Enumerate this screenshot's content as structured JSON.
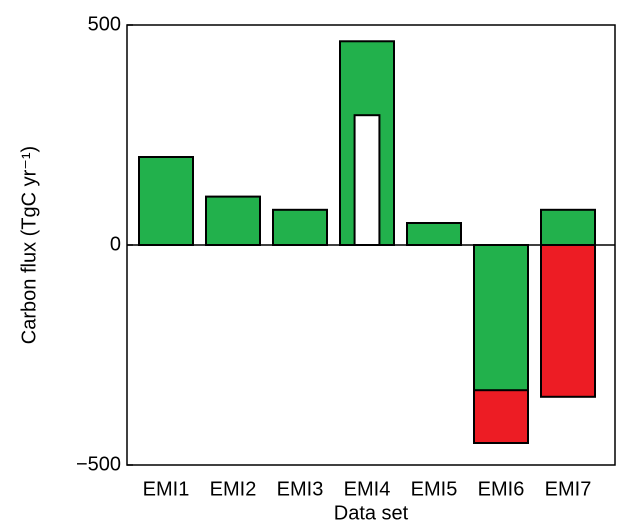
{
  "chart_data": {
    "type": "bar",
    "xlabel": "Data set",
    "ylabel": "Carbon flux (TgC yr⁻¹)",
    "categories": [
      "EMI1",
      "EMI2",
      "EMI3",
      "EMI4",
      "EMI5",
      "EMI6",
      "EMI7"
    ],
    "series": [
      {
        "color": "#ed1c24",
        "values": [
          null,
          null,
          null,
          null,
          null,
          -450,
          -345
        ]
      },
      {
        "color": "#22b14c",
        "values": [
          200,
          110,
          80,
          463,
          50,
          -330,
          80
        ]
      },
      {
        "color": "#ffffff",
        "values": [
          null,
          null,
          null,
          295,
          null,
          null,
          null
        ]
      }
    ],
    "ylim": [
      -500,
      500
    ],
    "yticks": [
      {
        "value": -500,
        "label": "−500"
      },
      0,
      500
    ]
  }
}
